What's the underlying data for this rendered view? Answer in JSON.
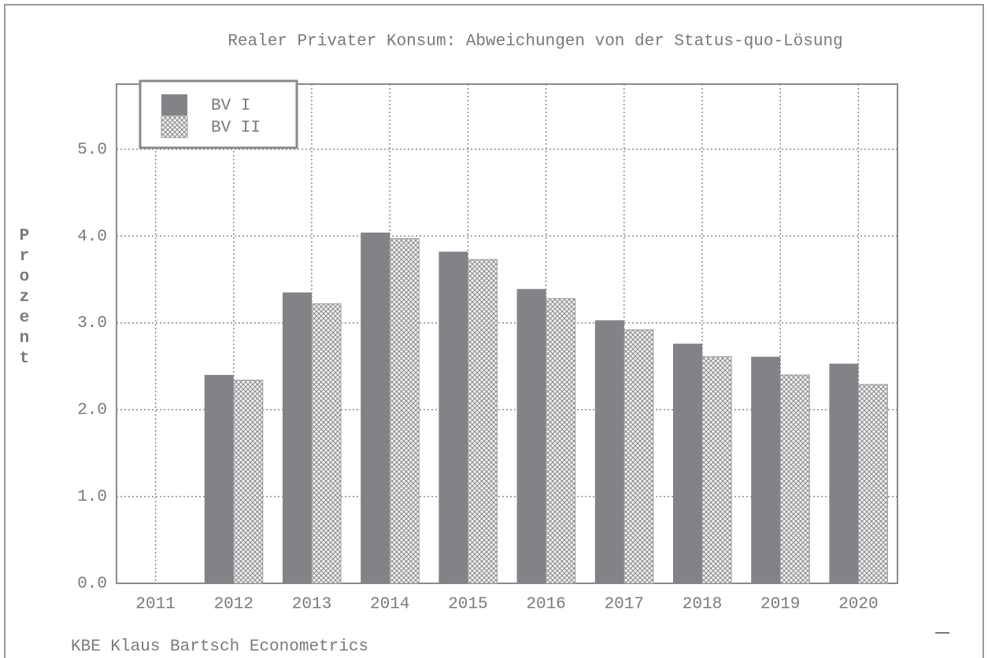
{
  "chart_data": {
    "type": "bar",
    "title": "Realer Privater Konsum: Abweichungen von der Status-quo-Lösung",
    "y_label": "Prozent",
    "footer": "KBE Klaus Bartsch Econometrics",
    "categories": [
      "2011",
      "2012",
      "2013",
      "2014",
      "2015",
      "2016",
      "2017",
      "2018",
      "2019",
      "2020"
    ],
    "series": [
      {
        "name": "BV I",
        "color": "#828287",
        "pattern": "solid",
        "values": [
          null,
          2.4,
          3.35,
          4.04,
          3.82,
          3.39,
          3.03,
          2.76,
          2.61,
          2.53
        ]
      },
      {
        "name": "BV II",
        "color": "#8a8a8a",
        "pattern": "crosshatch",
        "values": [
          null,
          2.34,
          3.22,
          3.97,
          3.73,
          3.28,
          2.92,
          2.61,
          2.4,
          2.29
        ]
      }
    ],
    "ylim": [
      0,
      5.75
    ],
    "yticks": [
      {
        "value": 0,
        "label": "0.0"
      },
      {
        "value": 1,
        "label": "1.0"
      },
      {
        "value": 2,
        "label": "2.0"
      },
      {
        "value": 3,
        "label": "3.0"
      },
      {
        "value": 4,
        "label": "4.0"
      },
      {
        "value": 5,
        "label": "5.0"
      }
    ],
    "grid": true,
    "legend": "upper left"
  }
}
